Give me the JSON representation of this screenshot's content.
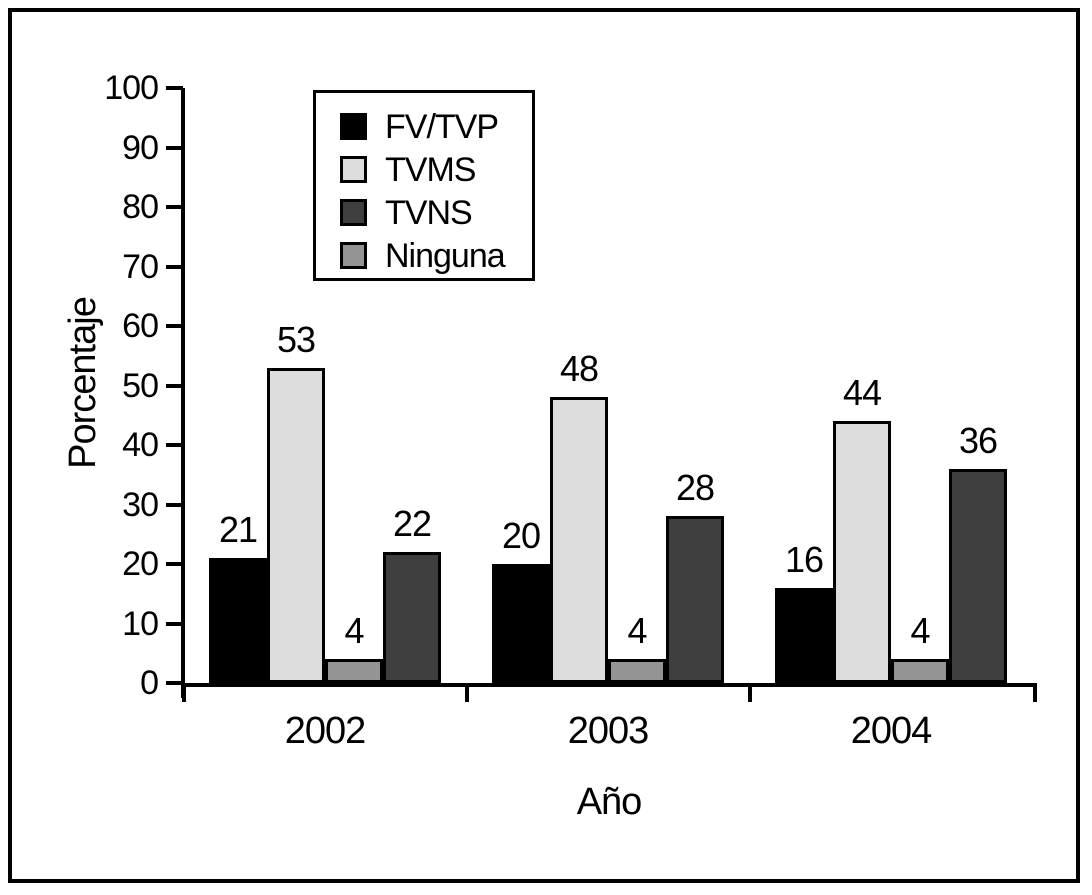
{
  "figure": {
    "background_color": "#ffffff",
    "border_color": "#000000"
  },
  "chart_data": {
    "type": "bar",
    "title": "",
    "xlabel": "Año",
    "ylabel": "Porcentaje",
    "categories": [
      "2002",
      "2003",
      "2004"
    ],
    "series": [
      {
        "name": "FV/TVP",
        "color": "#000000",
        "values": [
          21,
          20,
          16
        ]
      },
      {
        "name": "TVMS",
        "color": "#dddddd",
        "values": [
          53,
          48,
          44
        ]
      },
      {
        "name": "TVNS",
        "color": "#3f3f3f",
        "values": [
          22,
          28,
          36
        ]
      },
      {
        "name": "Ninguna",
        "color": "#949494",
        "values": [
          4,
          4,
          4
        ]
      }
    ],
    "bar_draw_order": [
      "FV/TVP",
      "TVMS",
      "Ninguna",
      "TVNS"
    ],
    "ylim": [
      0,
      100
    ],
    "yticks": [
      0,
      10,
      20,
      30,
      40,
      50,
      60,
      70,
      80,
      90,
      100
    ],
    "grid": false,
    "legend_position": "top-left-inside",
    "bar_value_labels": true
  }
}
